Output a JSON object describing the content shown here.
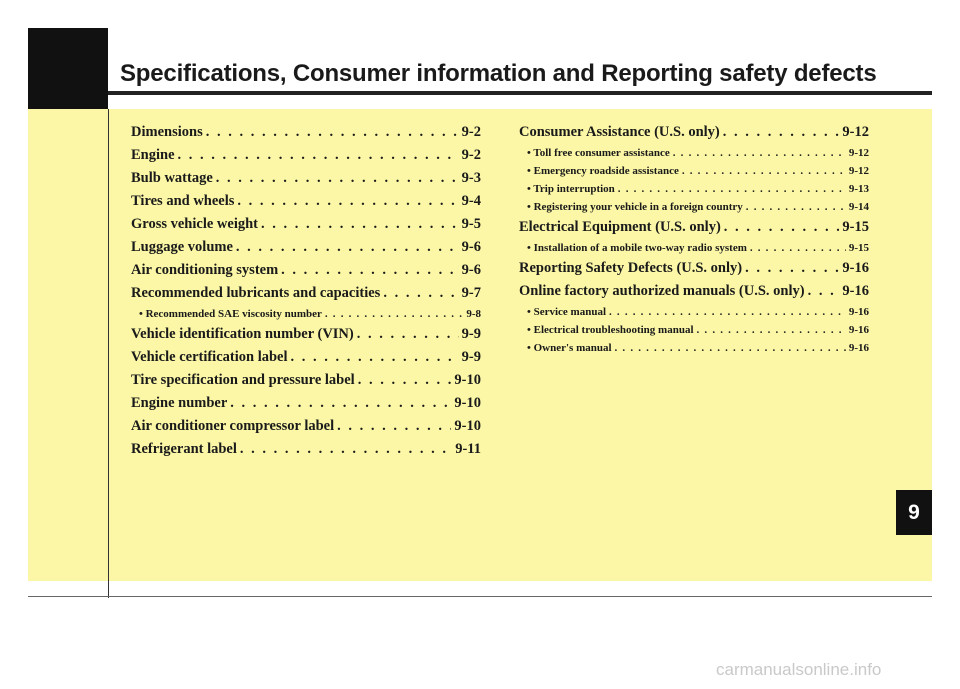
{
  "header": {
    "title": "Specifications, Consumer information and Reporting safety defects"
  },
  "toc": {
    "left": [
      {
        "label": "Dimensions",
        "page": "9-2",
        "level": "main"
      },
      {
        "label": "Engine",
        "page": "9-2",
        "level": "main"
      },
      {
        "label": "Bulb wattage",
        "page": "9-3",
        "level": "main"
      },
      {
        "label": "Tires and wheels",
        "page": "9-4",
        "level": "main"
      },
      {
        "label": "Gross vehicle weight",
        "page": "9-5",
        "level": "main"
      },
      {
        "label": "Luggage volume",
        "page": "9-6",
        "level": "main"
      },
      {
        "label": "Air conditioning system",
        "page": "9-6",
        "level": "main"
      },
      {
        "label": "Recommended lubricants and capacities",
        "page": "9-7",
        "level": "main"
      },
      {
        "label": "• Recommended SAE viscosity number",
        "page": "9-8",
        "level": "sub"
      },
      {
        "label": "Vehicle identification number (VIN)",
        "page": "9-9",
        "level": "main"
      },
      {
        "label": "Vehicle certification label",
        "page": "9-9",
        "level": "main"
      },
      {
        "label": "Tire specification and pressure label",
        "page": "9-10",
        "level": "main"
      },
      {
        "label": "Engine number",
        "page": "9-10",
        "level": "main"
      },
      {
        "label": "Air conditioner compressor label",
        "page": "9-10",
        "level": "main"
      },
      {
        "label": "Refrigerant label",
        "page": "9-11",
        "level": "main"
      }
    ],
    "right": [
      {
        "label": "Consumer Assistance (U.S. only)",
        "page": "9-12",
        "level": "main"
      },
      {
        "label": "• Toll free consumer assistance",
        "page": "9-12",
        "level": "sub"
      },
      {
        "label": "• Emergency roadside assistance",
        "page": "9-12",
        "level": "sub"
      },
      {
        "label": "• Trip interruption",
        "page": "9-13",
        "level": "sub"
      },
      {
        "label": "• Registering your vehicle in a foreign country",
        "page": "9-14",
        "level": "sub"
      },
      {
        "label": "Electrical Equipment (U.S. only)",
        "page": "9-15",
        "level": "main"
      },
      {
        "label": "• Installation of a mobile two-way radio system",
        "page": "9-15",
        "level": "sub"
      },
      {
        "label": "Reporting Safety Defects (U.S. only)",
        "page": "9-16",
        "level": "main"
      },
      {
        "label": "Online factory authorized manuals (U.S. only)",
        "page": "9-16",
        "level": "main"
      },
      {
        "label": "• Service manual",
        "page": "9-16",
        "level": "sub"
      },
      {
        "label": "• Electrical troubleshooting manual",
        "page": "9-16",
        "level": "sub"
      },
      {
        "label": "• Owner's manual",
        "page": "9-16",
        "level": "sub"
      }
    ]
  },
  "chapter_tab": {
    "number": "9"
  },
  "watermark": {
    "text": "carmanualsonline.info"
  },
  "colors": {
    "background": "#fbf7a6",
    "accent": "#111111"
  }
}
